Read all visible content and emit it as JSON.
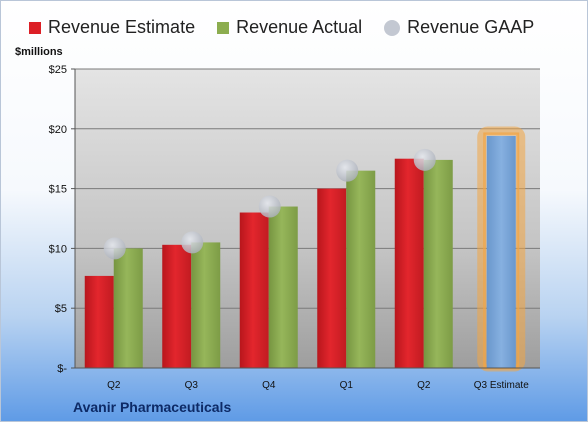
{
  "chart_data": {
    "type": "bar",
    "title": "",
    "units_label": "$millions",
    "company": "Avanir Pharmaceuticals",
    "categories": [
      "Q2",
      "Q3",
      "Q4",
      "Q1",
      "Q2",
      "Q3 Estimate"
    ],
    "series": [
      {
        "name": "Revenue Estimate",
        "color": "#dc1f26",
        "values": [
          7.7,
          10.3,
          13.0,
          15.0,
          17.5,
          null
        ]
      },
      {
        "name": "Revenue Actual",
        "color": "#8cad4f",
        "values": [
          10.0,
          10.5,
          13.5,
          16.5,
          17.4,
          null
        ]
      },
      {
        "name": "Revenue GAAP",
        "color": "#c3c8d2",
        "marker": "circle",
        "values": [
          10.0,
          10.5,
          13.5,
          16.5,
          17.4,
          null
        ]
      },
      {
        "name": "",
        "color": "#7aa6d8",
        "highlight": "#f2a544",
        "values": [
          null,
          null,
          null,
          null,
          null,
          19.4
        ]
      }
    ],
    "ylim": [
      0,
      25
    ],
    "y_ticks": [
      {
        "value": 0,
        "label": "$-"
      },
      {
        "value": 5,
        "label": "$5"
      },
      {
        "value": 10,
        "label": "$10"
      },
      {
        "value": 15,
        "label": "$15"
      },
      {
        "value": 20,
        "label": "$20"
      },
      {
        "value": 25,
        "label": "$25"
      }
    ],
    "grid": true,
    "legend_position": "top"
  }
}
